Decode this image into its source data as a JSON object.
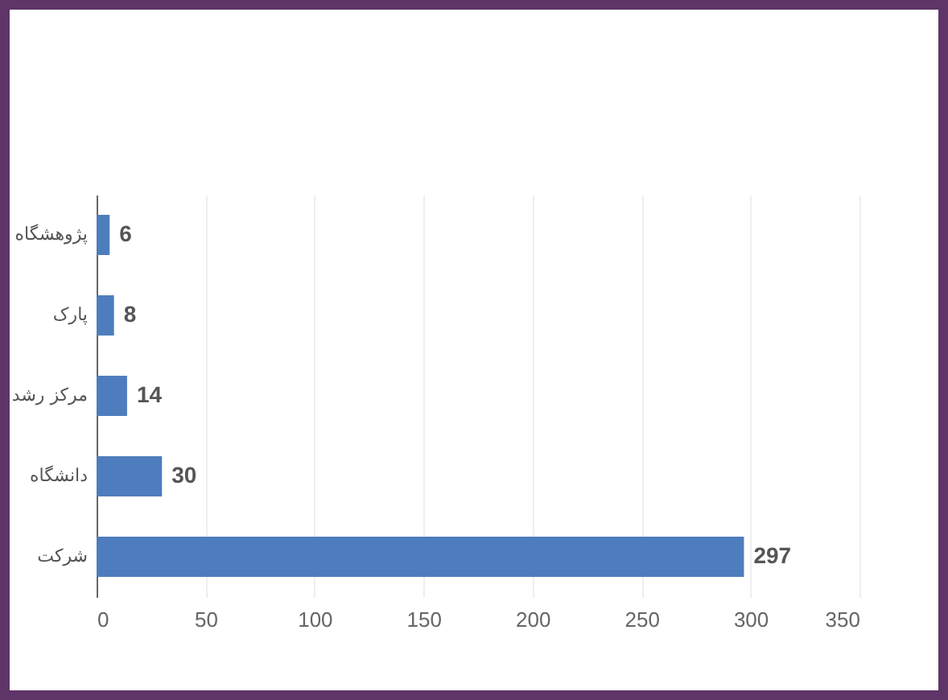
{
  "chart_data": {
    "type": "bar",
    "orientation": "horizontal",
    "categories": [
      "پژوهشگاه",
      "پارک",
      "مرکز رشد",
      "دانشگاه",
      "شرکت"
    ],
    "values": [
      6,
      8,
      14,
      30,
      297
    ],
    "color": "#4e7dbd",
    "xlim": [
      0,
      350
    ],
    "xticks": [
      0,
      50,
      100,
      150,
      200,
      250,
      300,
      350
    ],
    "grid": "x",
    "data_labels": true
  }
}
